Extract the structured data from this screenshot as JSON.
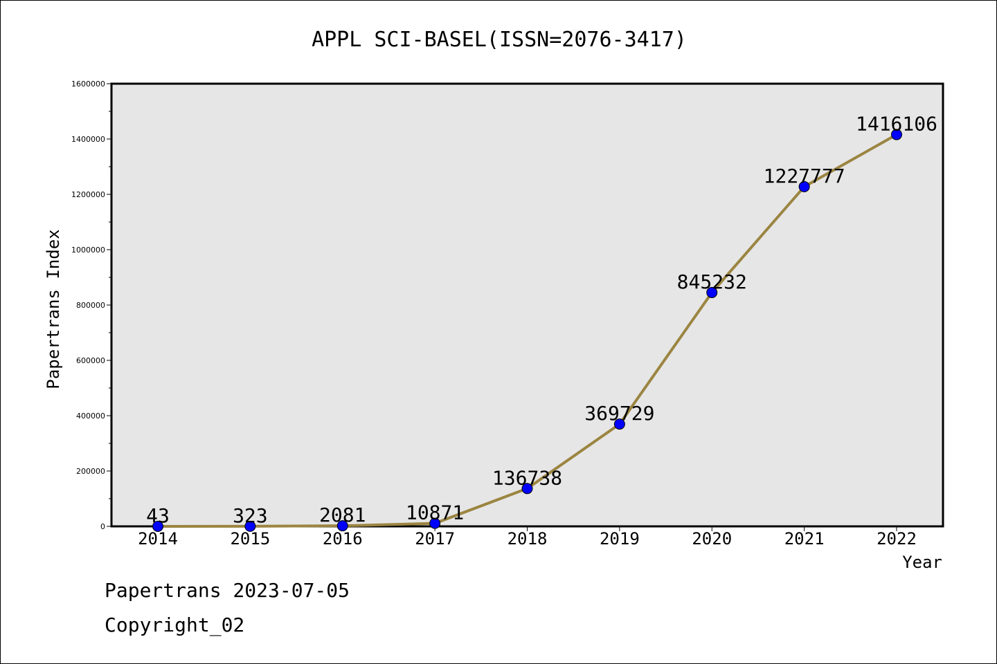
{
  "footer": {
    "line1": "Papertrans 2023-07-05",
    "line2": "Copyright_02"
  },
  "chart_data": {
    "type": "line",
    "title": "APPL SCI-BASEL(ISSN=2076-3417)",
    "xlabel": "Year",
    "ylabel": "Papertrans Index",
    "x": [
      "2014",
      "2015",
      "2016",
      "2017",
      "2018",
      "2019",
      "2020",
      "2021",
      "2022"
    ],
    "values": [
      43,
      323,
      2081,
      10871,
      136738,
      369729,
      845232,
      1227777,
      1416106
    ],
    "data_labels": [
      "43",
      "323",
      "2081",
      "10871",
      "136738",
      "369729",
      "845232",
      "1227777",
      "1416106"
    ],
    "ylim": [
      0,
      1600000
    ],
    "yticks": [
      0,
      200000,
      400000,
      600000,
      800000,
      1000000,
      1200000,
      1400000,
      1600000
    ],
    "ytick_labels": [
      "0",
      "200000",
      "400000",
      "600000",
      "800000",
      "1000000",
      "1200000",
      "1400000",
      "1600000"
    ],
    "grid": false,
    "plot_background": "#e6e6e6",
    "line_color": "#9b8541",
    "marker_color": "#0000ff"
  }
}
